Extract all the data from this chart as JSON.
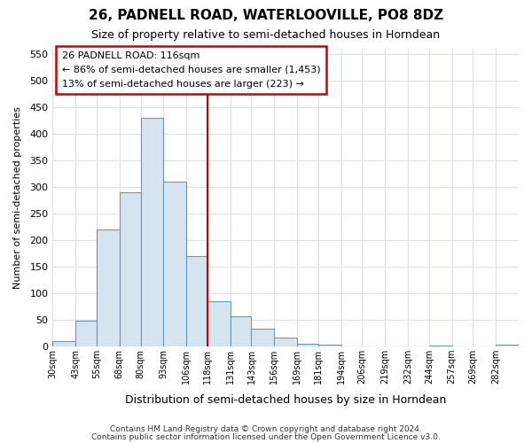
{
  "title": "26, PADNELL ROAD, WATERLOOVILLE, PO8 8DZ",
  "subtitle": "Size of property relative to semi-detached houses in Horndean",
  "xlabel": "Distribution of semi-detached houses by size in Horndean",
  "ylabel": "Number of semi-detached properties",
  "bar_color": "#d6e4f0",
  "bar_edge_color": "#6699bb",
  "background_color": "#ffffff",
  "grid_color": "#ddddee",
  "annotation_box_color": "#cc0000",
  "annotation_line_color": "#cc0000",
  "annotation_title": "26 PADNELL ROAD: 116sqm",
  "annotation_line1": "← 86% of semi-detached houses are smaller (1,453)",
  "annotation_line2": "13% of semi-detached houses are larger (223) →",
  "vline_x": 118,
  "categories": [
    "30sqm",
    "43sqm",
    "55sqm",
    "68sqm",
    "80sqm",
    "93sqm",
    "106sqm",
    "118sqm",
    "131sqm",
    "143sqm",
    "156sqm",
    "169sqm",
    "181sqm",
    "194sqm",
    "206sqm",
    "219sqm",
    "232sqm",
    "244sqm",
    "257sqm",
    "269sqm",
    "282sqm"
  ],
  "bin_edges": [
    30,
    43,
    55,
    68,
    80,
    93,
    106,
    118,
    131,
    143,
    156,
    169,
    181,
    194,
    206,
    219,
    232,
    244,
    257,
    269,
    282,
    295
  ],
  "values": [
    10,
    48,
    220,
    290,
    430,
    310,
    170,
    85,
    57,
    33,
    17,
    5,
    3,
    1,
    0,
    0,
    0,
    2,
    0,
    1,
    3
  ],
  "ylim": [
    0,
    560
  ],
  "yticks": [
    0,
    50,
    100,
    150,
    200,
    250,
    300,
    350,
    400,
    450,
    500,
    550
  ],
  "footer1": "Contains HM Land Registry data © Crown copyright and database right 2024.",
  "footer2": "Contains public sector information licensed under the Open Government Licence v3.0."
}
